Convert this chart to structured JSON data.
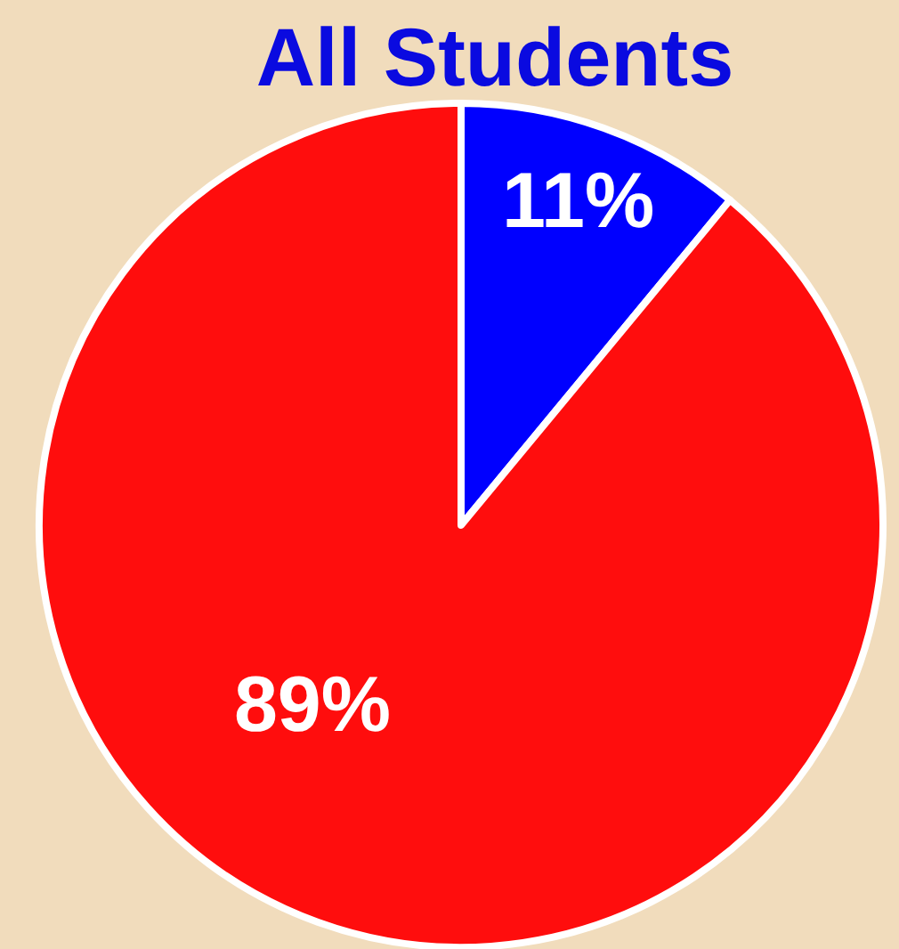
{
  "chart_data": {
    "type": "pie",
    "title": "All Students",
    "categories": [
      null,
      null
    ],
    "values": [
      11,
      89
    ],
    "colors": [
      "#0000ff",
      "#ff0d0d"
    ],
    "value_labels": [
      "11%",
      "89%"
    ]
  }
}
